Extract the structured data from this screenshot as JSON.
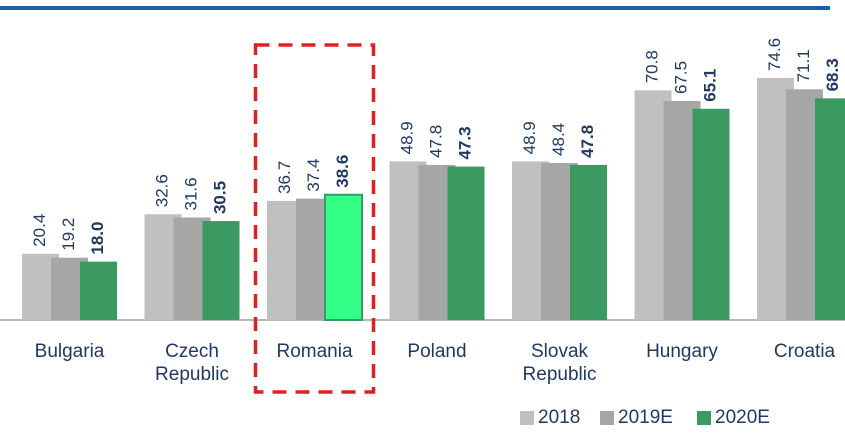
{
  "chart_data": {
    "type": "bar",
    "categories": [
      "Bulgaria",
      "Czech Republic",
      "Romania",
      "Poland",
      "Slovak Republic",
      "Hungary",
      "Croatia"
    ],
    "series": [
      {
        "name": "2018",
        "color": "#c0c0c0",
        "values": [
          20.4,
          32.6,
          36.7,
          48.9,
          48.9,
          70.8,
          74.6
        ],
        "value_labels": [
          "20.4",
          "32.6",
          "36.7",
          "48.9",
          "48.9",
          "70.8",
          "74.6"
        ]
      },
      {
        "name": "2019E",
        "color": "#a6a6a6",
        "values": [
          19.2,
          31.6,
          37.4,
          47.8,
          48.4,
          67.5,
          71.1
        ],
        "value_labels": [
          "19.2",
          "31.6",
          "37.4",
          "47.8",
          "48.4",
          "67.5",
          "71.1"
        ]
      },
      {
        "name": "2020E",
        "color": "#3a9a62",
        "values": [
          18.0,
          30.5,
          38.6,
          47.3,
          47.8,
          65.1,
          68.3
        ],
        "value_labels": [
          "18.0",
          "30.5",
          "38.6",
          "47.3",
          "47.8",
          "65.1",
          "68.3"
        ],
        "bold": true
      }
    ],
    "highlight_category": "Romania",
    "highlight_color": "#33ff88",
    "ylim": [
      0,
      90
    ]
  }
}
